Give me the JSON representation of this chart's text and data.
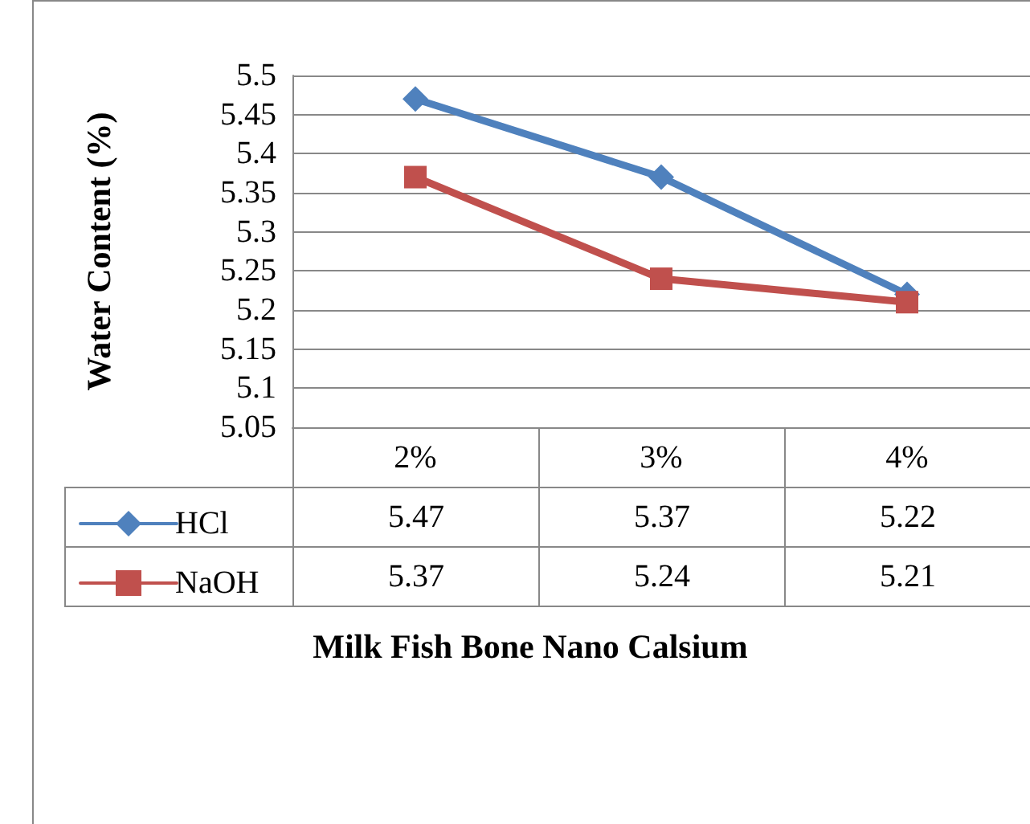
{
  "chart_data": {
    "type": "line",
    "xlabel": "Milk Fish Bone Nano Calsium",
    "ylabel": "Water Content (%)",
    "categories": [
      "2%",
      "3%",
      "4%"
    ],
    "series": [
      {
        "name": "HCl",
        "color": "#4f81bd",
        "marker": "diamond",
        "values": [
          5.47,
          5.37,
          5.22
        ]
      },
      {
        "name": "NaOH",
        "color": "#c0504d",
        "marker": "square",
        "values": [
          5.37,
          5.24,
          5.21
        ]
      }
    ],
    "ylim": [
      5.05,
      5.5
    ],
    "yticks": [
      5.05,
      5.1,
      5.15,
      5.2,
      5.25,
      5.3,
      5.35,
      5.4,
      5.45,
      5.5
    ],
    "grid": "y",
    "legend": "bottom left",
    "data_labels": true,
    "line_style": "solid"
  }
}
